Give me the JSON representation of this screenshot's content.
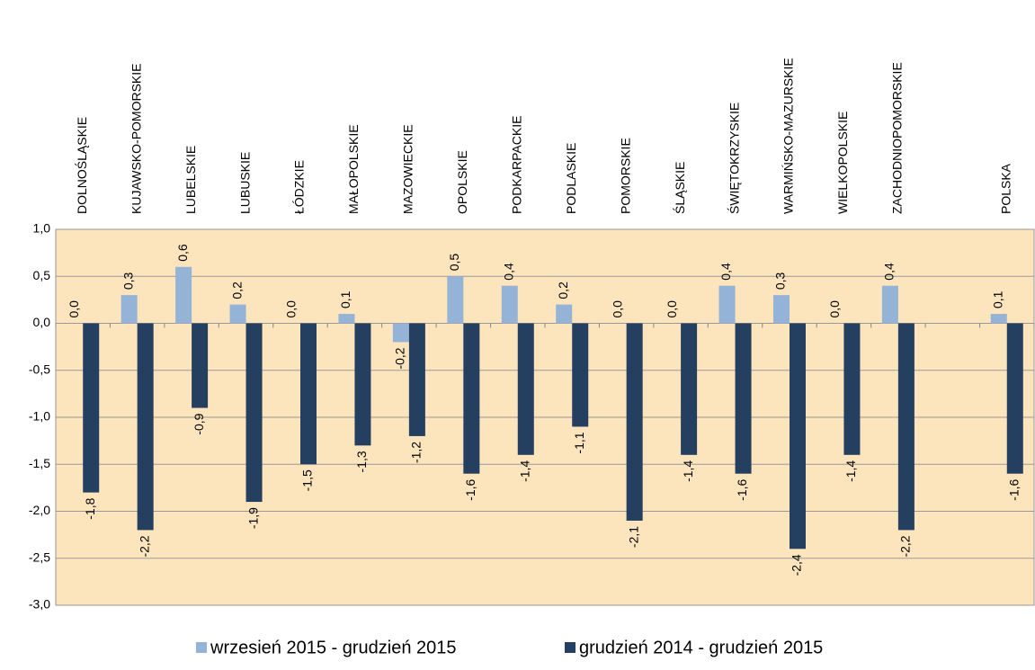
{
  "chart_data": {
    "type": "bar",
    "categories": [
      "DOLNOŚLĄSKIE",
      "KUJAWSKO-POMORSKIE",
      "LUBELSKIE",
      "LUBUSKIE",
      "ŁÓDZKIE",
      "MAŁOPOLSKIE",
      "MAZOWIECKIE",
      "OPOLSKIE",
      "PODKARPACKIE",
      "PODLASKIE",
      "POMORSKIE",
      "ŚLĄSKIE",
      "ŚWIĘTOKRZYSKIE",
      "WARMIŃSKO-MAZURSKIE",
      "WIELKOPOLSKIE",
      "ZACHODNIOPOMORSKIE",
      null,
      "POLSKA"
    ],
    "series": [
      {
        "name": "wrzesień 2015 - grudzień 2015",
        "color": "#95b3d7",
        "values": [
          0.0,
          0.3,
          0.6,
          0.2,
          0.0,
          0.1,
          -0.2,
          0.5,
          0.4,
          0.2,
          0.0,
          0.0,
          0.4,
          0.3,
          0.0,
          0.4,
          null,
          0.1
        ],
        "value_labels": [
          "0,0",
          "0,3",
          "0,6",
          "0,2",
          "0,0",
          "0,1",
          "-0,2",
          "0,5",
          "0,4",
          "0,2",
          "0,0",
          "0,0",
          "0,4",
          "0,3",
          "0,0",
          "0,4",
          null,
          "0,1"
        ]
      },
      {
        "name": "grudzień 2014 - grudzień 2015",
        "color": "#243f60",
        "values": [
          -1.8,
          -2.2,
          -0.9,
          -1.9,
          -1.5,
          -1.3,
          -1.2,
          -1.6,
          -1.4,
          -1.1,
          -2.1,
          -1.4,
          -1.6,
          -2.4,
          -1.4,
          -2.2,
          null,
          -1.6
        ],
        "value_labels": [
          "-1,8",
          "-2,2",
          "-0,9",
          "-1,9",
          "-1,5",
          "-1,3",
          "-1,2",
          "-1,6",
          "-1,4",
          "-1,1",
          "-2,1",
          "-1,4",
          "-1,6",
          "-2,4",
          "-1,4",
          "-2,2",
          null,
          "-1,6"
        ]
      }
    ],
    "ylim": [
      -3.0,
      1.0
    ],
    "yticks": [
      {
        "value": 1.0,
        "label": "1,0"
      },
      {
        "value": 0.5,
        "label": "0,5"
      },
      {
        "value": 0.0,
        "label": "0,0"
      },
      {
        "value": -0.5,
        "label": "-0,5"
      },
      {
        "value": -1.0,
        "label": "-1,0"
      },
      {
        "value": -1.5,
        "label": "-1,5"
      },
      {
        "value": -2.0,
        "label": "-2,0"
      },
      {
        "value": -2.5,
        "label": "-2,5"
      },
      {
        "value": -3.0,
        "label": "-3,0"
      }
    ],
    "grid": true,
    "background": "#fce4bd",
    "legend": "bottom"
  }
}
